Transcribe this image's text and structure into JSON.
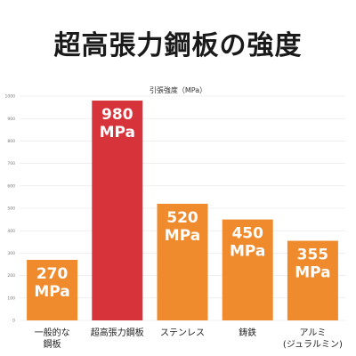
{
  "chart_data": {
    "type": "bar",
    "title": "超高張力鋼板の強度",
    "ylabel": "引張強度（MPa）",
    "xlabel": "",
    "ylim": [
      0,
      1000
    ],
    "yticks": [
      0,
      100,
      200,
      300,
      400,
      500,
      600,
      700,
      800,
      900,
      1000
    ],
    "grid": true,
    "categories": [
      [
        "一般的な",
        "鋼板"
      ],
      [
        "超高張力鋼板"
      ],
      [
        "ステンレス"
      ],
      [
        "鋳鉄"
      ],
      [
        "アルミ",
        "(ジュラルミン)"
      ]
    ],
    "values": [
      270,
      980,
      520,
      450,
      355
    ],
    "value_labels": [
      [
        "270",
        "MPa"
      ],
      [
        "980",
        "MPa"
      ],
      [
        "520",
        "MPa"
      ],
      [
        "450",
        "MPa"
      ],
      [
        "355",
        "MPa"
      ]
    ],
    "colors": [
      "#ef8a2d",
      "#d6333a",
      "#ef8a2d",
      "#ef8a2d",
      "#ef8a2d"
    ],
    "grid_color": "#e4e4e4"
  }
}
